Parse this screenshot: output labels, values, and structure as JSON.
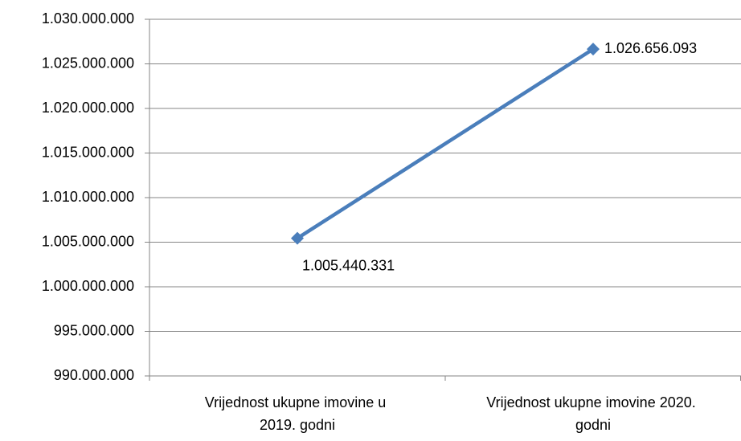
{
  "chart_data": {
    "type": "line",
    "categories": [
      "Vrijednost ukupne imovine u 2019. godni",
      "Vrijednost ukupne imovine 2020. godni"
    ],
    "series": [
      {
        "color": "#4a7ebb",
        "values": [
          1005440331,
          1026656093
        ],
        "value_labels": [
          "1.005.440.331",
          "1.026.656.093"
        ]
      }
    ],
    "ylim": [
      990000000,
      1030000000
    ],
    "yticks": [
      {
        "value": 990000000,
        "label": "990.000.000"
      },
      {
        "value": 995000000,
        "label": "995.000.000"
      },
      {
        "value": 1000000000,
        "label": "1.000.000.000"
      },
      {
        "value": 1005000000,
        "label": "1.005.000.000"
      },
      {
        "value": 1010000000,
        "label": "1.010.000.000"
      },
      {
        "value": 1015000000,
        "label": "1.015.000.000"
      },
      {
        "value": 1020000000,
        "label": "1.020.000.000"
      },
      {
        "value": 1025000000,
        "label": "1.025.000.000"
      },
      {
        "value": 1030000000,
        "label": "1.030.000.000"
      }
    ],
    "grid": true
  }
}
